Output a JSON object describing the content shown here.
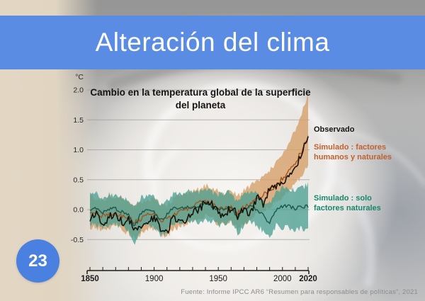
{
  "slide": {
    "title": "Alteración del clima",
    "page_number": "23",
    "source": "Fuente: Informe IPCC AR6 “Resumen para responsables de políticas”, 2021"
  },
  "colors": {
    "banner_blue": "#5b8ce4",
    "page_circle_blue": "#4a80e0",
    "grid_gray": "#9b9b9b",
    "axis_black": "#1f1b16",
    "tick_label": "#2a2a2a"
  },
  "chart_data": {
    "type": "line",
    "title": "Cambio en la temperatura global de la superficie del planeta",
    "unit_label": "°C",
    "grid": "horizontal",
    "legend_position": "right",
    "ylim": [
      -0.75,
      2.05
    ],
    "yticks": [
      {
        "v": 2.0,
        "label": "2.0"
      },
      {
        "v": 1.5,
        "label": "1.5"
      },
      {
        "v": 1.0,
        "label": "1.0"
      },
      {
        "v": 0.5,
        "label": "0.5"
      },
      {
        "v": 0.0,
        "label": "0.0"
      },
      {
        "v": -0.5,
        "label": "-0.5"
      }
    ],
    "xticks": [
      {
        "year": 1850,
        "label": "1850",
        "bold": true
      },
      {
        "year": 1900,
        "label": "1900",
        "bold": false
      },
      {
        "year": 1950,
        "label": "1950",
        "bold": false
      },
      {
        "year": 2000,
        "label": "2000",
        "bold": false
      },
      {
        "year": 2020,
        "label": "2020",
        "bold": true
      }
    ],
    "xticks_minor_step": 10,
    "x": [
      1850,
      1855,
      1860,
      1865,
      1870,
      1875,
      1880,
      1885,
      1890,
      1895,
      1900,
      1905,
      1910,
      1915,
      1920,
      1925,
      1930,
      1935,
      1940,
      1945,
      1950,
      1955,
      1960,
      1965,
      1970,
      1975,
      1980,
      1985,
      1990,
      1995,
      2000,
      2005,
      2010,
      2015,
      2020
    ],
    "series": [
      {
        "id": "observado",
        "name": "Observado",
        "color": "#17120b",
        "legend_color": "#141414",
        "jitter": 0.07,
        "values": [
          -0.15,
          -0.05,
          -0.28,
          -0.12,
          -0.08,
          -0.22,
          -0.18,
          -0.3,
          -0.32,
          -0.22,
          -0.12,
          -0.3,
          -0.38,
          -0.12,
          -0.22,
          -0.15,
          -0.05,
          0.0,
          0.12,
          0.08,
          -0.05,
          -0.1,
          0.05,
          -0.1,
          0.0,
          -0.05,
          0.2,
          0.1,
          0.35,
          0.4,
          0.42,
          0.62,
          0.72,
          0.95,
          1.25
        ]
      },
      {
        "id": "human_natural",
        "name": "Simulado : factores humanos y naturales",
        "color": "#a5551e",
        "legend_color": "#c2602e",
        "band_color": "#d6a069",
        "band_opacity": 0.8,
        "jitter": 0.045,
        "band_jitter": 0.05,
        "values": [
          -0.05,
          -0.06,
          -0.1,
          -0.08,
          -0.05,
          -0.1,
          -0.14,
          -0.22,
          -0.15,
          -0.08,
          -0.05,
          -0.16,
          -0.18,
          -0.08,
          -0.04,
          0.0,
          0.06,
          0.1,
          0.15,
          0.12,
          0.02,
          0.0,
          0.05,
          -0.06,
          0.04,
          0.08,
          0.2,
          0.24,
          0.32,
          0.42,
          0.52,
          0.66,
          0.78,
          0.98,
          1.2
        ],
        "band_upper": [
          0.22,
          0.2,
          0.16,
          0.2,
          0.24,
          0.2,
          0.12,
          0.05,
          0.12,
          0.18,
          0.2,
          0.1,
          0.08,
          0.18,
          0.22,
          0.26,
          0.3,
          0.34,
          0.4,
          0.36,
          0.3,
          0.28,
          0.33,
          0.22,
          0.32,
          0.38,
          0.48,
          0.55,
          0.65,
          0.78,
          0.92,
          1.12,
          1.32,
          1.6,
          1.95
        ],
        "band_lower": [
          -0.3,
          -0.3,
          -0.34,
          -0.3,
          -0.28,
          -0.34,
          -0.4,
          -0.48,
          -0.4,
          -0.33,
          -0.3,
          -0.42,
          -0.44,
          -0.33,
          -0.28,
          -0.24,
          -0.2,
          -0.15,
          -0.1,
          -0.14,
          -0.24,
          -0.25,
          -0.2,
          -0.32,
          -0.24,
          -0.18,
          -0.08,
          0.0,
          0.05,
          0.12,
          0.2,
          0.32,
          0.42,
          0.58,
          0.72
        ]
      },
      {
        "id": "natural",
        "name": "Simulado : solo factores naturales",
        "color": "#1a594c",
        "legend_color": "#17886a",
        "band_color": "#4da094",
        "band_opacity": 0.78,
        "jitter": 0.03,
        "band_jitter": 0.05,
        "values": [
          0.0,
          0.02,
          -0.04,
          0.0,
          0.02,
          -0.04,
          -0.08,
          -0.28,
          -0.05,
          0.0,
          -0.04,
          -0.18,
          -0.08,
          0.02,
          0.0,
          0.04,
          0.05,
          0.06,
          0.1,
          0.06,
          0.0,
          0.02,
          0.05,
          -0.14,
          0.02,
          0.05,
          0.0,
          -0.1,
          -0.22,
          0.0,
          0.05,
          0.06,
          0.02,
          0.05,
          0.05
        ],
        "band_upper": [
          0.25,
          0.26,
          0.2,
          0.25,
          0.26,
          0.2,
          0.16,
          0.05,
          0.2,
          0.25,
          0.2,
          0.1,
          0.16,
          0.26,
          0.26,
          0.3,
          0.3,
          0.3,
          0.35,
          0.3,
          0.26,
          0.27,
          0.3,
          0.1,
          0.26,
          0.3,
          0.26,
          0.16,
          0.1,
          0.3,
          0.36,
          0.36,
          0.3,
          0.36,
          0.42
        ],
        "band_lower": [
          -0.26,
          -0.24,
          -0.3,
          -0.26,
          -0.24,
          -0.3,
          -0.36,
          -0.6,
          -0.3,
          -0.26,
          -0.3,
          -0.46,
          -0.36,
          -0.24,
          -0.26,
          -0.2,
          -0.2,
          -0.2,
          -0.16,
          -0.2,
          -0.26,
          -0.24,
          -0.2,
          -0.4,
          -0.26,
          -0.2,
          -0.26,
          -0.36,
          -0.48,
          -0.26,
          -0.3,
          -0.3,
          -0.36,
          -0.3,
          -0.36
        ]
      }
    ]
  }
}
